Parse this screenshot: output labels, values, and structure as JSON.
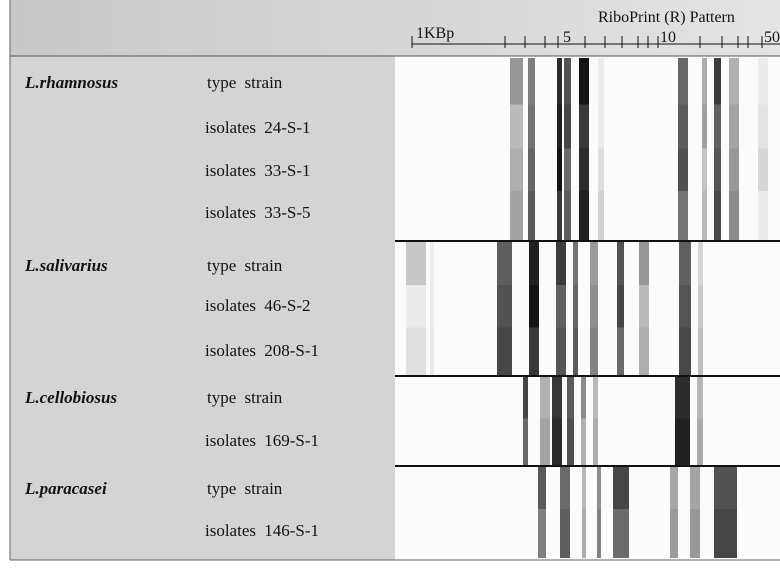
{
  "header": {
    "title": "RiboPrint (R) Pattern",
    "scale_labels": [
      "1KBp",
      "5",
      "10",
      "50"
    ]
  },
  "groups": [
    {
      "species": "L.rhamnosus",
      "rows": [
        "type strain",
        "isolates 24-S-1",
        "isolates 33-S-1",
        "isolates 33-S-5"
      ]
    },
    {
      "species": "L.salivarius",
      "rows": [
        "type strain",
        "isolates 46-S-2",
        "isolates 208-S-1"
      ]
    },
    {
      "species": "L.cellobiosus",
      "rows": [
        "type strain",
        "isolates 169-S-1"
      ]
    },
    {
      "species": "L.paracasei",
      "rows": [
        "type strain",
        "isolates 146-S-1"
      ]
    }
  ]
}
